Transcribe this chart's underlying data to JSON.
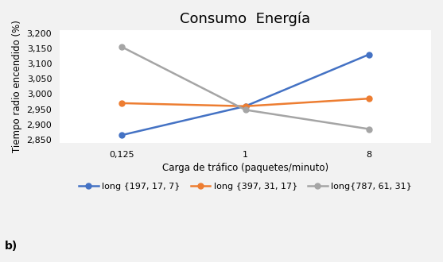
{
  "title": "Consumo  Energía",
  "xlabel": "Carga de tráfico (paquetes/minuto)",
  "ylabel": "Tiempo radio encendido (%)",
  "x_labels": [
    "0,125",
    "1",
    "8"
  ],
  "x_positions": [
    0,
    1,
    2
  ],
  "series": [
    {
      "label": "long {197, 17, 7}",
      "values": [
        2865,
        2960,
        3130
      ],
      "color": "#4472C4",
      "marker": "o"
    },
    {
      "label": "long {397, 31, 17}",
      "values": [
        2970,
        2960,
        2985
      ],
      "color": "#ED7D31",
      "marker": "o"
    },
    {
      "label": "long{787, 61, 31}",
      "values": [
        3155,
        2948,
        2885
      ],
      "color": "#A5A5A5",
      "marker": "o"
    }
  ],
  "ylim": [
    2840,
    3210
  ],
  "yticks": [
    2850,
    2900,
    2950,
    3000,
    3050,
    3100,
    3150,
    3200
  ],
  "ytick_labels": [
    "2,850",
    "2,900",
    "2,950",
    "3,000",
    "3,050",
    "3,100",
    "3,150",
    "3,200"
  ],
  "background_color": "#f2f2f2",
  "plot_bg_color": "#ffffff",
  "grid_color": "#ffffff",
  "title_fontsize": 13,
  "label_fontsize": 8.5,
  "tick_fontsize": 8,
  "legend_fontsize": 8,
  "line_width": 1.8,
  "marker_size": 5
}
